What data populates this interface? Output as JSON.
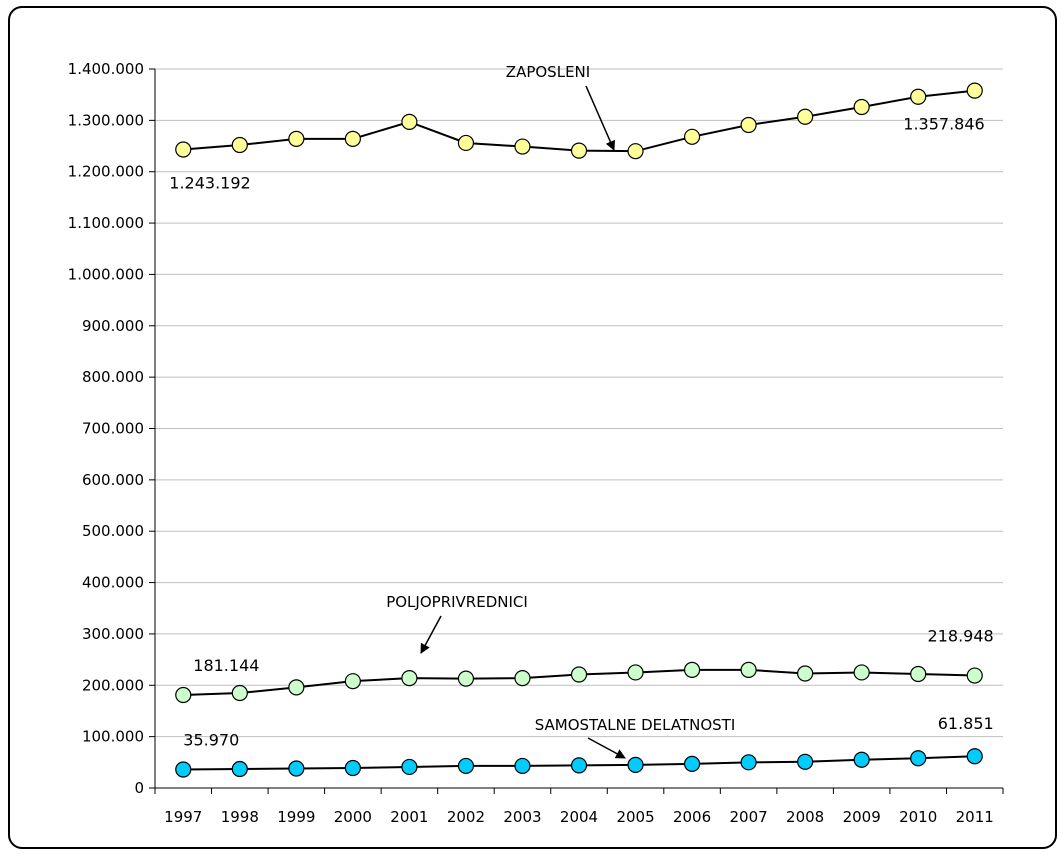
{
  "chart_data": {
    "type": "line",
    "categories": [
      "1997",
      "1998",
      "1999",
      "2000",
      "2001",
      "2002",
      "2003",
      "2004",
      "2005",
      "2006",
      "2007",
      "2008",
      "2009",
      "2010",
      "2011"
    ],
    "ylim": [
      0,
      1400000
    ],
    "yticks": [
      0,
      100000,
      200000,
      300000,
      400000,
      500000,
      600000,
      700000,
      800000,
      900000,
      1000000,
      1100000,
      1200000,
      1300000,
      1400000
    ],
    "ytick_labels": [
      "0",
      "100.000",
      "200.000",
      "300.000",
      "400.000",
      "500.000",
      "600.000",
      "700.000",
      "800.000",
      "900.000",
      "1.000.000",
      "1.100.000",
      "1.200.000",
      "1.300.000",
      "1.400.000"
    ],
    "grid": true,
    "series": [
      {
        "name": "ZAPOSLENI",
        "color": "#ffff99",
        "values": [
          1243192,
          1252000,
          1264000,
          1264000,
          1297000,
          1256000,
          1249000,
          1241000,
          1240000,
          1268000,
          1291000,
          1307000,
          1326000,
          1346000,
          1357846
        ],
        "first_label": "1.243.192",
        "last_label": "1.357.846"
      },
      {
        "name": "POLJOPRIVREDNICI",
        "color": "#ccffcc",
        "values": [
          181144,
          185000,
          196000,
          208000,
          214000,
          213000,
          214000,
          221000,
          225000,
          230000,
          230000,
          223000,
          225000,
          222000,
          218948
        ],
        "first_label": "181.144",
        "last_label": "218.948"
      },
      {
        "name": "SAMOSTALNE DELATNOSTI",
        "color": "#00ccff",
        "values": [
          35970,
          37000,
          38000,
          39000,
          41000,
          43000,
          43000,
          44000,
          45000,
          47000,
          50000,
          51000,
          55000,
          58000,
          61851
        ],
        "first_label": "35.970",
        "last_label": "61.851"
      }
    ]
  }
}
